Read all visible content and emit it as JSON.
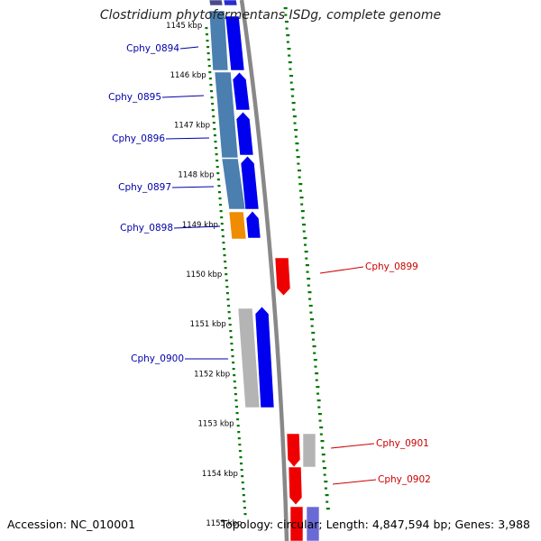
{
  "title": "Clostridium phytofermentans ISDg, complete genome",
  "accession": "Accession: NC_010001",
  "topology": "Topology: circular; Length: 4,847,594 bp; Genes: 3,988",
  "colors": {
    "forward_label": "#0000aa",
    "reverse_label": "#cc0000",
    "forward_gene": "#0000ee",
    "reverse_gene": "#ee0000",
    "steelblue_feature": "#4a7fb0",
    "orange_feature": "#f08c00",
    "grey_feature": "#b4b4b4",
    "gc_dash": "#007700",
    "backbone": "#888888"
  },
  "ticks": [
    {
      "label": "1145 kbp"
    },
    {
      "label": "1146 kbp"
    },
    {
      "label": "1147 kbp"
    },
    {
      "label": "1148 kbp"
    },
    {
      "label": "1149 kbp"
    },
    {
      "label": "1150 kbp"
    },
    {
      "label": "1151 kbp"
    },
    {
      "label": "1152 kbp"
    },
    {
      "label": "1153 kbp"
    },
    {
      "label": "1154 kbp"
    },
    {
      "label": "1155 kbp"
    }
  ],
  "genes": [
    {
      "name": "Cphy_0894",
      "strand": "forward"
    },
    {
      "name": "Cphy_0895",
      "strand": "forward"
    },
    {
      "name": "Cphy_0896",
      "strand": "forward"
    },
    {
      "name": "Cphy_0897",
      "strand": "forward"
    },
    {
      "name": "Cphy_0898",
      "strand": "forward"
    },
    {
      "name": "Cphy_0899",
      "strand": "reverse"
    },
    {
      "name": "Cphy_0900",
      "strand": "forward"
    },
    {
      "name": "Cphy_0901",
      "strand": "reverse"
    },
    {
      "name": "Cphy_0902",
      "strand": "reverse"
    }
  ]
}
